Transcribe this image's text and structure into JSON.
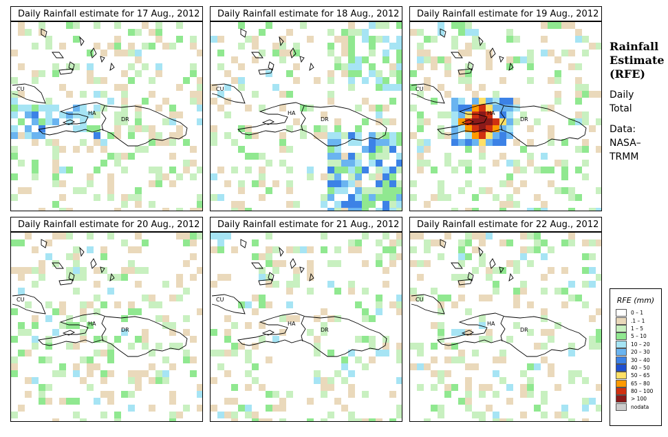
{
  "panels": [
    {
      "title": "Daily Rainfall estimate for  17 Aug., 2012",
      "labels": {
        "cu": "CU",
        "ha": "HA",
        "dr": "DR"
      },
      "seed": 17,
      "hot": []
    },
    {
      "title": "Daily Rainfall estimate for  18 Aug., 2012",
      "labels": {
        "cu": "CU",
        "ha": "HA",
        "dr": "DR"
      },
      "seed": 18,
      "hot": []
    },
    {
      "title": "Daily Rainfall estimate for  19 Aug., 2012",
      "labels": {
        "cu": "CU",
        "ha": "HA",
        "dr": "DR"
      },
      "seed": 19,
      "hot": [
        1
      ]
    },
    {
      "title": "Daily Rainfall estimate for  20 Aug., 2012",
      "labels": {
        "cu": "CU",
        "ha": "HA",
        "dr": "DR"
      },
      "seed": 20,
      "hot": []
    },
    {
      "title": "Daily Rainfall estimate for  21 Aug., 2012",
      "labels": {
        "cu": "CU",
        "ha": "HA",
        "dr": "DR"
      },
      "seed": 21,
      "hot": []
    },
    {
      "title": "Daily Rainfall estimate for  22 Aug., 2012",
      "labels": {
        "cu": "CU",
        "ha": "HA",
        "dr": "DR"
      },
      "seed": 22,
      "hot": []
    }
  ],
  "side": {
    "line1": "Rainfall",
    "line2": "Estimate",
    "line3": "(RFE)",
    "daily": "Daily",
    "total": "Total",
    "data": "Data:",
    "nasa": "NASA–",
    "trmm": "TRMM"
  },
  "legend": {
    "title": "RFE (mm)",
    "items": [
      {
        "label": "0 – 1",
        "color": "#ffffff"
      },
      {
        "label": ".1 – 1",
        "color": "#ead9bb"
      },
      {
        "label": "1 – 5",
        "color": "#c8f0c0"
      },
      {
        "label": "5 – 10",
        "color": "#90e890"
      },
      {
        "label": "10 – 20",
        "color": "#a6e4f4"
      },
      {
        "label": "20 – 30",
        "color": "#6ab4f0"
      },
      {
        "label": "30 – 40",
        "color": "#3c82e6"
      },
      {
        "label": "40 – 50",
        "color": "#1f4fd0"
      },
      {
        "label": "50 – 65",
        "color": "#ffe066"
      },
      {
        "label": "65 – 80",
        "color": "#ff9a00"
      },
      {
        "label": "80 – 100",
        "color": "#d03010"
      },
      {
        "label": "> 100",
        "color": "#8b1a1a"
      },
      {
        "label": "nodata",
        "color": "#cccccc"
      }
    ]
  }
}
